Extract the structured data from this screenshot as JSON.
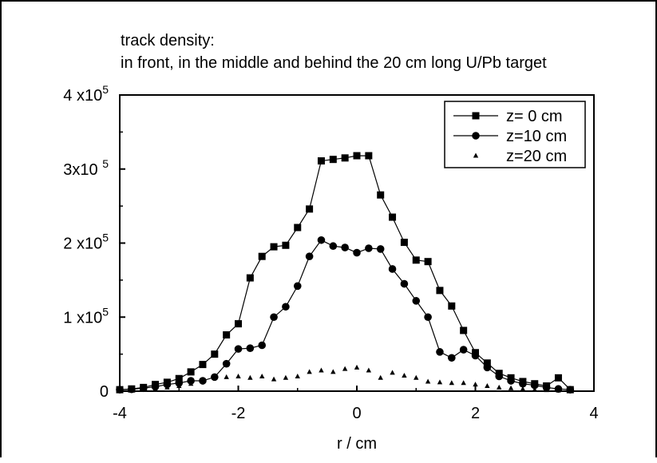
{
  "chart_data": {
    "type": "scatter",
    "title": "track density:",
    "subtitle": "in front, in the middle and behind the 20 cm long U/Pb target",
    "xlabel": "r / cm",
    "ylabel": "",
    "xlim": [
      -4,
      4
    ],
    "ylim": [
      0,
      400000
    ],
    "x_ticks": [
      -4,
      -2,
      0,
      2,
      4
    ],
    "x_tick_labels": [
      "-4",
      "-2",
      "0",
      "2",
      "4"
    ],
    "y_ticks": [
      {
        "value": 0,
        "base": "0",
        "exp": ""
      },
      {
        "value": 100000,
        "base": "1 x10",
        "exp": "5"
      },
      {
        "value": 200000,
        "base": "2 x10",
        "exp": "5"
      },
      {
        "value": 300000,
        "base": "3x10 ",
        "exp": "5"
      },
      {
        "value": 400000,
        "base": "4 x10",
        "exp": "5"
      }
    ],
    "grid": false,
    "legend_position": "top-right",
    "series": [
      {
        "name": "z= 0 cm",
        "marker": "square",
        "connected": true,
        "x": [
          -4.0,
          -3.8,
          -3.6,
          -3.4,
          -3.2,
          -3.0,
          -2.8,
          -2.6,
          -2.4,
          -2.2,
          -2.0,
          -1.8,
          -1.6,
          -1.4,
          -1.2,
          -1.0,
          -0.8,
          -0.6,
          -0.4,
          -0.2,
          0.0,
          0.2,
          0.4,
          0.6,
          0.8,
          1.0,
          1.2,
          1.4,
          1.6,
          1.8,
          2.0,
          2.2,
          2.4,
          2.6,
          2.8,
          3.0,
          3.2,
          3.4,
          3.6
        ],
        "y": [
          2000,
          3000,
          5000,
          9000,
          12000,
          17000,
          26000,
          36000,
          50000,
          76000,
          91000,
          153000,
          182000,
          195000,
          197000,
          221000,
          246000,
          311000,
          313000,
          315000,
          318000,
          318000,
          265000,
          235000,
          201000,
          177000,
          175000,
          136000,
          115000,
          82000,
          52000,
          38000,
          24000,
          18000,
          13000,
          10000,
          7000,
          18000,
          2000
        ]
      },
      {
        "name": "z=10 cm",
        "marker": "circle",
        "connected": true,
        "x": [
          -4.0,
          -3.8,
          -3.6,
          -3.4,
          -3.2,
          -3.0,
          -2.8,
          -2.6,
          -2.4,
          -2.2,
          -2.0,
          -1.8,
          -1.6,
          -1.4,
          -1.2,
          -1.0,
          -0.8,
          -0.6,
          -0.4,
          -0.2,
          0.0,
          0.2,
          0.4,
          0.6,
          0.8,
          1.0,
          1.2,
          1.4,
          1.6,
          1.8,
          2.0,
          2.2,
          2.4,
          2.6,
          2.8,
          3.0,
          3.2,
          3.4,
          3.6
        ],
        "y": [
          2000,
          2500,
          4000,
          6000,
          9000,
          11000,
          14000,
          14000,
          19000,
          37000,
          57000,
          58000,
          62000,
          100000,
          114000,
          142000,
          182000,
          204000,
          196000,
          194000,
          187000,
          193000,
          192000,
          165000,
          145000,
          122000,
          100000,
          53000,
          45000,
          56000,
          48000,
          32000,
          20000,
          14000,
          10000,
          8000,
          5000,
          3000,
          2000
        ]
      },
      {
        "name": "z=20 cm",
        "marker": "triangle",
        "connected": false,
        "x": [
          -4.0,
          -3.8,
          -3.6,
          -3.4,
          -3.2,
          -3.0,
          -2.8,
          -2.6,
          -2.4,
          -2.2,
          -2.0,
          -1.8,
          -1.6,
          -1.4,
          -1.2,
          -1.0,
          -0.8,
          -0.6,
          -0.4,
          -0.2,
          0.0,
          0.2,
          0.4,
          0.6,
          0.8,
          1.0,
          1.2,
          1.4,
          1.6,
          1.8,
          2.0,
          2.2,
          2.4,
          2.6,
          2.8,
          3.0,
          3.2,
          3.4,
          3.6
        ],
        "y": [
          1000,
          1500,
          2000,
          3000,
          5000,
          7000,
          10000,
          14000,
          18000,
          19000,
          20000,
          18000,
          20000,
          16000,
          18000,
          20000,
          26000,
          28000,
          26000,
          30000,
          32000,
          28000,
          18000,
          25000,
          21000,
          18000,
          13000,
          12000,
          11000,
          11000,
          9000,
          7000,
          5000,
          4000,
          3000,
          2000,
          1500,
          1000,
          500
        ]
      }
    ]
  }
}
